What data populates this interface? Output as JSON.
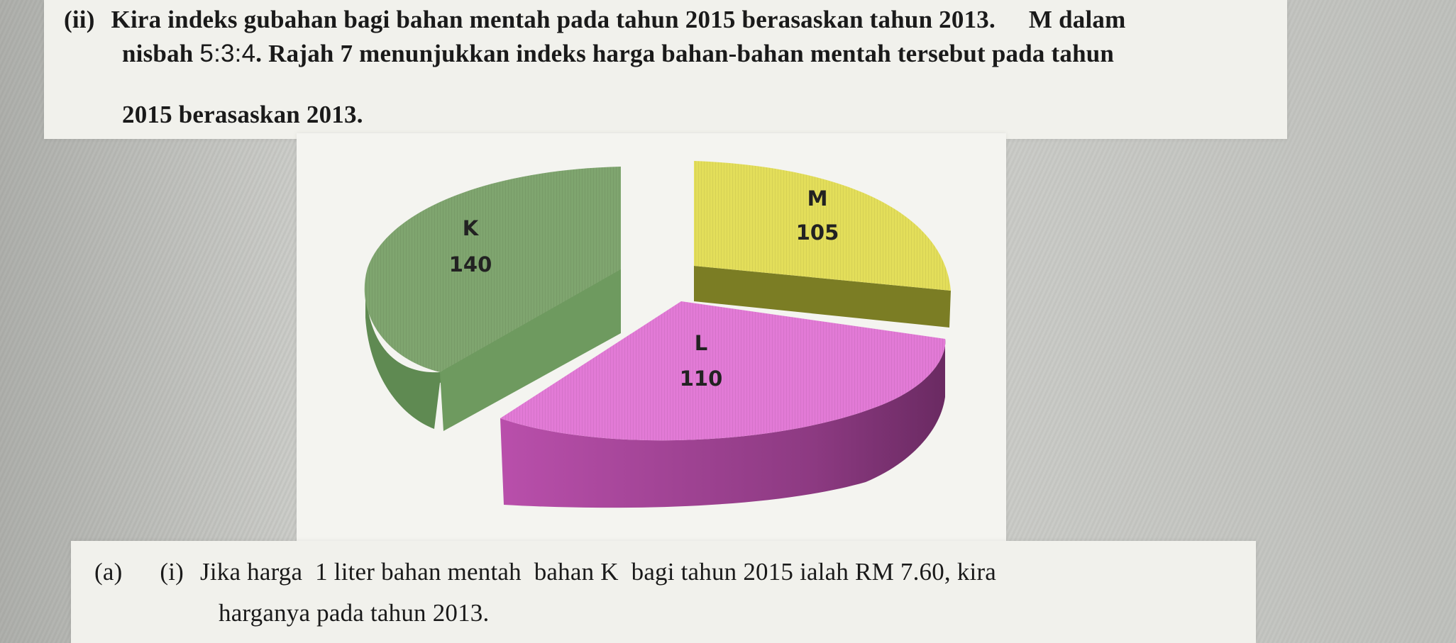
{
  "question": {
    "part_label": "(ii)",
    "line1": "Kira indeks gubahan bagi bahan mentah pada tahun 2015 berasaskan tahun 2013.",
    "line1_tail": "M dalam",
    "line2a": "nisbah",
    "ratio": "5:3:4",
    "line2b": ". Rajah 7 menunjukkan indeks harga bahan-bahan mentah tersebut pada tahun",
    "line3": "2015 berasaskan 2013."
  },
  "chart_data": {
    "type": "pie",
    "style": "3d-exploded",
    "categories": [
      "K",
      "M",
      "L"
    ],
    "values": [
      140,
      105,
      110
    ],
    "colors": [
      "#7fa56f",
      "#e3de5a",
      "#e27ad6"
    ]
  },
  "subquestion": {
    "label_a": "(a)",
    "label_i": "(i)",
    "line1": "Jika harga  1 liter bahan mentah  bahan K  bagi tahun 2015 ialah RM 7.60, kira",
    "line2": "harganya pada tahun 2013."
  }
}
